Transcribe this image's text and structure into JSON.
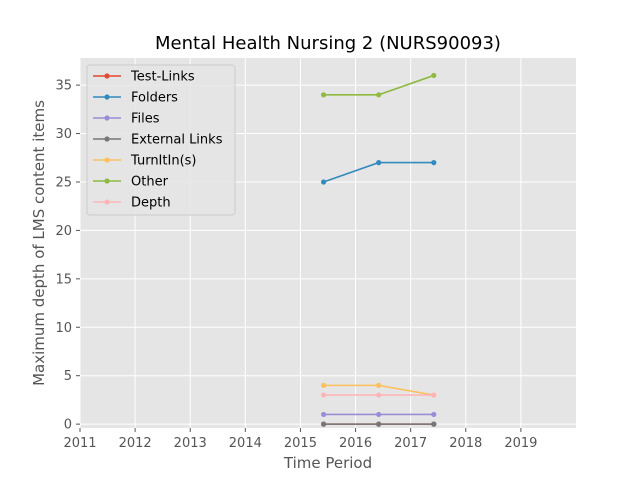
{
  "chart_data": {
    "type": "line",
    "title": "Mental Health Nursing 2 (NURS90093)",
    "xlabel": "Time Period",
    "ylabel": "Maximum depth of LMS content items",
    "xlim": [
      2011,
      2020
    ],
    "ylim": [
      -0.4,
      37.8
    ],
    "xticks": [
      "2011",
      "2012",
      "2013",
      "2014",
      "2015",
      "2016",
      "2017",
      "2018",
      "2019"
    ],
    "yticks": [
      "0",
      "5",
      "10",
      "15",
      "20",
      "25",
      "30",
      "35"
    ],
    "grid": true,
    "legend_position": "top-left",
    "x": [
      2015.42,
      2016.42,
      2017.42
    ],
    "series": [
      {
        "name": "Test-Links",
        "color": "#e24a33",
        "values": [
          0,
          0,
          0
        ]
      },
      {
        "name": "Folders",
        "color": "#348abd",
        "values": [
          25,
          27,
          27
        ]
      },
      {
        "name": "Files",
        "color": "#988ed5",
        "values": [
          1,
          1,
          1
        ]
      },
      {
        "name": "External Links",
        "color": "#777777",
        "values": [
          0,
          0,
          0
        ]
      },
      {
        "name": "TurnItIn(s)",
        "color": "#fbc15e",
        "values": [
          4,
          4,
          3
        ]
      },
      {
        "name": "Other",
        "color": "#8eba42",
        "values": [
          34,
          34,
          36
        ]
      },
      {
        "name": "Depth",
        "color": "#ffb5b8",
        "values": [
          3,
          3,
          3
        ]
      }
    ]
  }
}
